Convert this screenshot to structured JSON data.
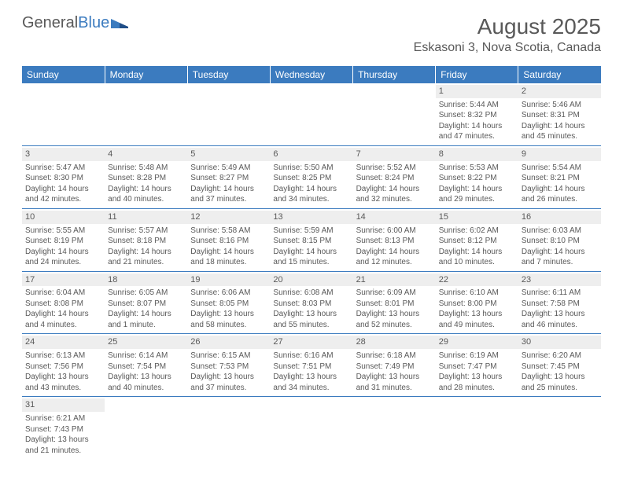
{
  "logo": {
    "part1": "General",
    "part2": "Blue"
  },
  "title": "August 2025",
  "location": "Eskasoni 3, Nova Scotia, Canada",
  "colors": {
    "header_bg": "#3b7bbf",
    "header_text": "#ffffff",
    "body_text": "#595959",
    "daynum_bg": "#eeeeee",
    "row_border": "#3b7bbf"
  },
  "days_of_week": [
    "Sunday",
    "Monday",
    "Tuesday",
    "Wednesday",
    "Thursday",
    "Friday",
    "Saturday"
  ],
  "weeks": [
    [
      null,
      null,
      null,
      null,
      null,
      {
        "n": "1",
        "sr": "Sunrise: 5:44 AM",
        "ss": "Sunset: 8:32 PM",
        "d1": "Daylight: 14 hours",
        "d2": "and 47 minutes."
      },
      {
        "n": "2",
        "sr": "Sunrise: 5:46 AM",
        "ss": "Sunset: 8:31 PM",
        "d1": "Daylight: 14 hours",
        "d2": "and 45 minutes."
      }
    ],
    [
      {
        "n": "3",
        "sr": "Sunrise: 5:47 AM",
        "ss": "Sunset: 8:30 PM",
        "d1": "Daylight: 14 hours",
        "d2": "and 42 minutes."
      },
      {
        "n": "4",
        "sr": "Sunrise: 5:48 AM",
        "ss": "Sunset: 8:28 PM",
        "d1": "Daylight: 14 hours",
        "d2": "and 40 minutes."
      },
      {
        "n": "5",
        "sr": "Sunrise: 5:49 AM",
        "ss": "Sunset: 8:27 PM",
        "d1": "Daylight: 14 hours",
        "d2": "and 37 minutes."
      },
      {
        "n": "6",
        "sr": "Sunrise: 5:50 AM",
        "ss": "Sunset: 8:25 PM",
        "d1": "Daylight: 14 hours",
        "d2": "and 34 minutes."
      },
      {
        "n": "7",
        "sr": "Sunrise: 5:52 AM",
        "ss": "Sunset: 8:24 PM",
        "d1": "Daylight: 14 hours",
        "d2": "and 32 minutes."
      },
      {
        "n": "8",
        "sr": "Sunrise: 5:53 AM",
        "ss": "Sunset: 8:22 PM",
        "d1": "Daylight: 14 hours",
        "d2": "and 29 minutes."
      },
      {
        "n": "9",
        "sr": "Sunrise: 5:54 AM",
        "ss": "Sunset: 8:21 PM",
        "d1": "Daylight: 14 hours",
        "d2": "and 26 minutes."
      }
    ],
    [
      {
        "n": "10",
        "sr": "Sunrise: 5:55 AM",
        "ss": "Sunset: 8:19 PM",
        "d1": "Daylight: 14 hours",
        "d2": "and 24 minutes."
      },
      {
        "n": "11",
        "sr": "Sunrise: 5:57 AM",
        "ss": "Sunset: 8:18 PM",
        "d1": "Daylight: 14 hours",
        "d2": "and 21 minutes."
      },
      {
        "n": "12",
        "sr": "Sunrise: 5:58 AM",
        "ss": "Sunset: 8:16 PM",
        "d1": "Daylight: 14 hours",
        "d2": "and 18 minutes."
      },
      {
        "n": "13",
        "sr": "Sunrise: 5:59 AM",
        "ss": "Sunset: 8:15 PM",
        "d1": "Daylight: 14 hours",
        "d2": "and 15 minutes."
      },
      {
        "n": "14",
        "sr": "Sunrise: 6:00 AM",
        "ss": "Sunset: 8:13 PM",
        "d1": "Daylight: 14 hours",
        "d2": "and 12 minutes."
      },
      {
        "n": "15",
        "sr": "Sunrise: 6:02 AM",
        "ss": "Sunset: 8:12 PM",
        "d1": "Daylight: 14 hours",
        "d2": "and 10 minutes."
      },
      {
        "n": "16",
        "sr": "Sunrise: 6:03 AM",
        "ss": "Sunset: 8:10 PM",
        "d1": "Daylight: 14 hours",
        "d2": "and 7 minutes."
      }
    ],
    [
      {
        "n": "17",
        "sr": "Sunrise: 6:04 AM",
        "ss": "Sunset: 8:08 PM",
        "d1": "Daylight: 14 hours",
        "d2": "and 4 minutes."
      },
      {
        "n": "18",
        "sr": "Sunrise: 6:05 AM",
        "ss": "Sunset: 8:07 PM",
        "d1": "Daylight: 14 hours",
        "d2": "and 1 minute."
      },
      {
        "n": "19",
        "sr": "Sunrise: 6:06 AM",
        "ss": "Sunset: 8:05 PM",
        "d1": "Daylight: 13 hours",
        "d2": "and 58 minutes."
      },
      {
        "n": "20",
        "sr": "Sunrise: 6:08 AM",
        "ss": "Sunset: 8:03 PM",
        "d1": "Daylight: 13 hours",
        "d2": "and 55 minutes."
      },
      {
        "n": "21",
        "sr": "Sunrise: 6:09 AM",
        "ss": "Sunset: 8:01 PM",
        "d1": "Daylight: 13 hours",
        "d2": "and 52 minutes."
      },
      {
        "n": "22",
        "sr": "Sunrise: 6:10 AM",
        "ss": "Sunset: 8:00 PM",
        "d1": "Daylight: 13 hours",
        "d2": "and 49 minutes."
      },
      {
        "n": "23",
        "sr": "Sunrise: 6:11 AM",
        "ss": "Sunset: 7:58 PM",
        "d1": "Daylight: 13 hours",
        "d2": "and 46 minutes."
      }
    ],
    [
      {
        "n": "24",
        "sr": "Sunrise: 6:13 AM",
        "ss": "Sunset: 7:56 PM",
        "d1": "Daylight: 13 hours",
        "d2": "and 43 minutes."
      },
      {
        "n": "25",
        "sr": "Sunrise: 6:14 AM",
        "ss": "Sunset: 7:54 PM",
        "d1": "Daylight: 13 hours",
        "d2": "and 40 minutes."
      },
      {
        "n": "26",
        "sr": "Sunrise: 6:15 AM",
        "ss": "Sunset: 7:53 PM",
        "d1": "Daylight: 13 hours",
        "d2": "and 37 minutes."
      },
      {
        "n": "27",
        "sr": "Sunrise: 6:16 AM",
        "ss": "Sunset: 7:51 PM",
        "d1": "Daylight: 13 hours",
        "d2": "and 34 minutes."
      },
      {
        "n": "28",
        "sr": "Sunrise: 6:18 AM",
        "ss": "Sunset: 7:49 PM",
        "d1": "Daylight: 13 hours",
        "d2": "and 31 minutes."
      },
      {
        "n": "29",
        "sr": "Sunrise: 6:19 AM",
        "ss": "Sunset: 7:47 PM",
        "d1": "Daylight: 13 hours",
        "d2": "and 28 minutes."
      },
      {
        "n": "30",
        "sr": "Sunrise: 6:20 AM",
        "ss": "Sunset: 7:45 PM",
        "d1": "Daylight: 13 hours",
        "d2": "and 25 minutes."
      }
    ],
    [
      {
        "n": "31",
        "sr": "Sunrise: 6:21 AM",
        "ss": "Sunset: 7:43 PM",
        "d1": "Daylight: 13 hours",
        "d2": "and 21 minutes."
      },
      null,
      null,
      null,
      null,
      null,
      null
    ]
  ]
}
